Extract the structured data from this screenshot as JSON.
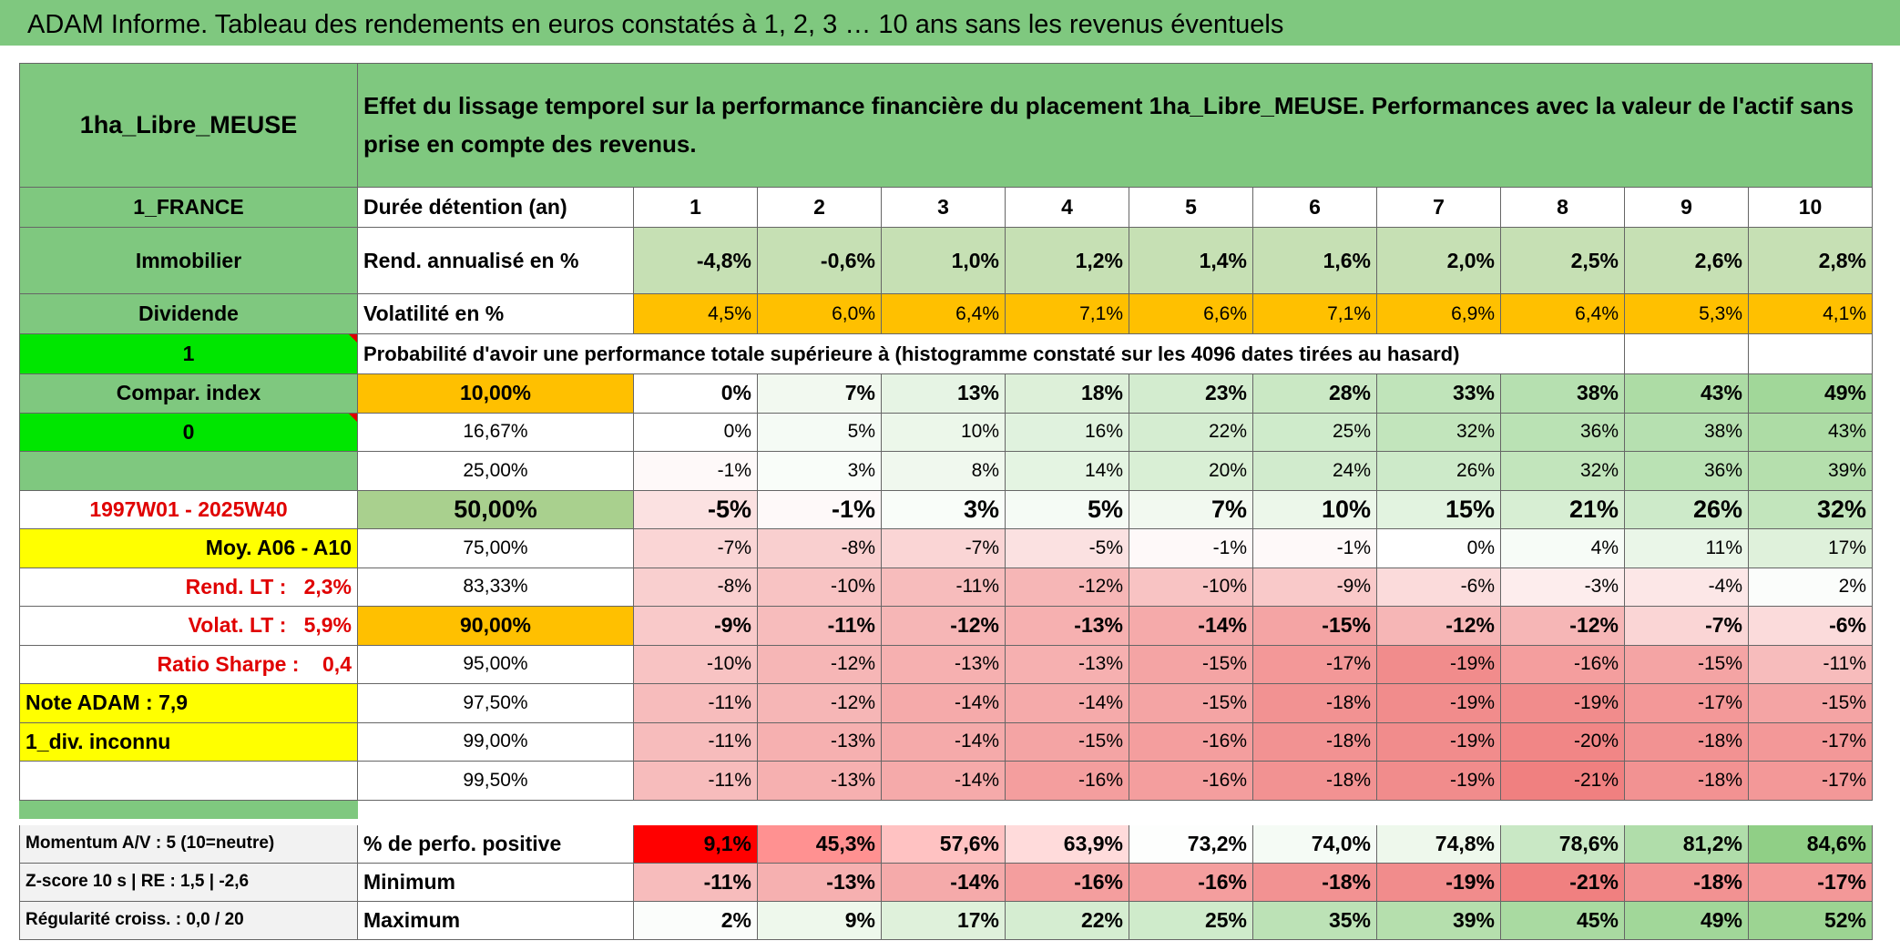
{
  "title": "ADAM Informe. Tableau des rendements en euros constatés à 1, 2, 3 … 10 ans sans les revenus éventuels",
  "table": {
    "header": {
      "name": "1ha_Libre_MEUSE",
      "description": "Effet du lissage temporel sur la performance financière du placement 1ha_Libre_MEUSE. Performances avec la valeur de l'actif sans prise en compte des revenus."
    },
    "rows": [
      [
        "1_FRANCE",
        "Durée détention (an)",
        "1",
        "2",
        "3",
        "4",
        "5",
        "6",
        "7",
        "8",
        "9",
        "10"
      ],
      [
        "Immobilier",
        "Rend. annualisé en %",
        "-4,8%",
        "-0,6%",
        "1,0%",
        "1,2%",
        "1,4%",
        "1,6%",
        "2,0%",
        "2,5%",
        "2,6%",
        "2,8%"
      ],
      [
        "Dividende",
        "Volatilité en %",
        "4,5%",
        "6,0%",
        "6,4%",
        "7,1%",
        "6,6%",
        "7,1%",
        "6,9%",
        "6,4%",
        "5,3%",
        "4,1%"
      ],
      [
        "1",
        "Probabilité d'avoir une performance totale supérieure à (histogramme constaté sur les 4096 dates tirées au hasard)"
      ],
      [
        "Compar. index",
        "10,00%",
        "0%",
        "7%",
        "13%",
        "18%",
        "23%",
        "28%",
        "33%",
        "38%",
        "43%",
        "49%"
      ],
      [
        "0",
        "16,67%",
        "0%",
        "5%",
        "10%",
        "16%",
        "22%",
        "25%",
        "32%",
        "36%",
        "38%",
        "43%"
      ],
      [
        null,
        "25,00%",
        "-1%",
        "3%",
        "8%",
        "14%",
        "20%",
        "24%",
        "26%",
        "32%",
        "36%",
        "39%"
      ],
      [
        "1997W01 - 2025W40",
        "50,00%",
        "-5%",
        "-1%",
        "3%",
        "5%",
        "7%",
        "10%",
        "15%",
        "21%",
        "26%",
        "32%"
      ],
      [
        "Moy. A06 - A10",
        "75,00%",
        "-7%",
        "-8%",
        "-7%",
        "-5%",
        "-1%",
        "-1%",
        "0%",
        "4%",
        "11%",
        "17%"
      ],
      [
        "Rend. LT :   2,3%",
        "83,33%",
        "-8%",
        "-10%",
        "-11%",
        "-12%",
        "-10%",
        "-9%",
        "-6%",
        "-3%",
        "-4%",
        "2%"
      ],
      [
        "Volat. LT :   5,9%",
        "90,00%",
        "-9%",
        "-11%",
        "-12%",
        "-13%",
        "-14%",
        "-15%",
        "-12%",
        "-12%",
        "-7%",
        "-6%"
      ],
      [
        "Ratio Sharpe :    0,4",
        "95,00%",
        "-10%",
        "-12%",
        "-13%",
        "-13%",
        "-15%",
        "-17%",
        "-19%",
        "-16%",
        "-15%",
        "-11%"
      ],
      [
        "Note ADAM : 7,9",
        "97,50%",
        "-11%",
        "-12%",
        "-14%",
        "-14%",
        "-15%",
        "-18%",
        "-19%",
        "-19%",
        "-17%",
        "-15%"
      ],
      [
        "1_div. inconnu",
        "99,00%",
        "-11%",
        "-13%",
        "-14%",
        "-15%",
        "-16%",
        "-18%",
        "-19%",
        "-20%",
        "-18%",
        "-17%"
      ],
      [
        null,
        "99,50%",
        "-11%",
        "-13%",
        "-14%",
        "-16%",
        "-16%",
        "-18%",
        "-19%",
        "-21%",
        "-18%",
        "-17%"
      ],
      [
        "Momentum A/V : 5 (10=neutre)",
        "% de perfo. positive",
        "9,1%",
        "45,3%",
        "57,6%",
        "63,9%",
        "73,2%",
        "74,0%",
        "74,8%",
        "78,6%",
        "81,2%",
        "84,6%"
      ],
      [
        "Z-score 10 s | RE : 1,5 | -2,6",
        "Minimum",
        "-11%",
        "-13%",
        "-14%",
        "-16%",
        "-16%",
        "-18%",
        "-19%",
        "-21%",
        "-18%",
        "-17%"
      ],
      [
        "Régularité croiss. : 0,0 / 20",
        "Maximum",
        "2%",
        "9%",
        "17%",
        "22%",
        "25%",
        "35%",
        "39%",
        "45%",
        "49%",
        "52%"
      ]
    ]
  }
}
